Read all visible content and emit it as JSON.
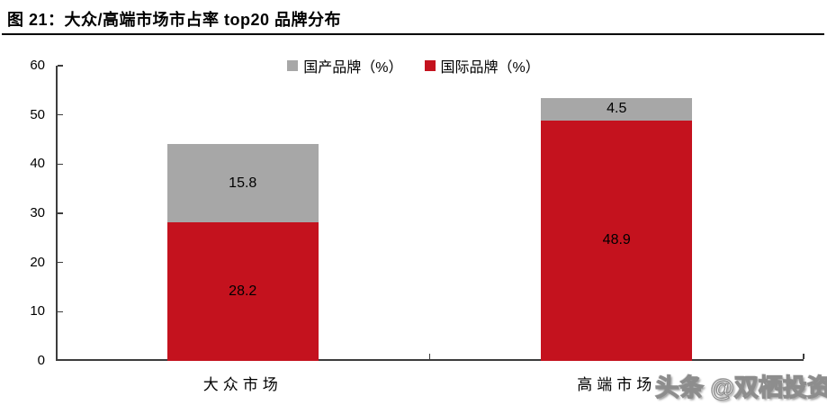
{
  "header": {
    "full_title": "图 21：大众/高端市场市占率 top20 品牌分布"
  },
  "watermark": "头条 @双栖投资",
  "chart_data": {
    "type": "bar",
    "stacked": true,
    "title": "图 21：大众/高端市场市占率 top20 品牌分布",
    "categories": [
      {
        "id": "mass-market",
        "label": "大众市场"
      },
      {
        "id": "premium-market",
        "label": "高端市场"
      }
    ],
    "series": [
      {
        "id": "international",
        "name": "国际品牌（%）",
        "color": "#C4121E",
        "values": [
          28.2,
          48.9
        ]
      },
      {
        "id": "domestic",
        "name": "国产品牌（%）",
        "color": "#A7A7A7",
        "values": [
          15.8,
          4.5
        ]
      }
    ],
    "legend_order": [
      "domestic",
      "international"
    ],
    "xlabel": "",
    "ylabel": "",
    "ylim": [
      0,
      60
    ],
    "yticks": [
      0,
      10,
      20,
      30,
      40,
      50,
      60
    ],
    "grid": false,
    "legend_position": "top"
  }
}
